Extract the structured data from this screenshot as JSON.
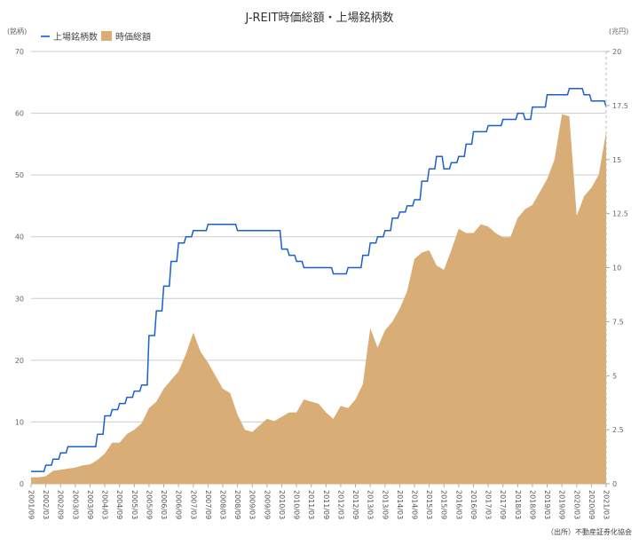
{
  "chart_data": {
    "type": "line+area",
    "title": "J-REIT時価総額・上場銘柄数",
    "left_unit": "(銘柄)",
    "right_unit": "(兆円)",
    "source": "（出所）不動産証券化協会",
    "left_ylim": [
      0,
      70
    ],
    "left_ticks": [
      "0",
      "10",
      "20",
      "30",
      "40",
      "50",
      "60",
      "70"
    ],
    "right_ylim": [
      0,
      20
    ],
    "right_ticks": [
      "0",
      "2.5",
      "5",
      "7.5",
      "10",
      "12.5",
      "15",
      "17.5",
      "20"
    ],
    "grid": true,
    "legend_position": "top-left",
    "colors": {
      "count_line": "#1a5fd1",
      "market_cap_area": "#d9ad76",
      "grid": "#cccccc"
    },
    "tick_labels": [
      "2001/09",
      "2002/03",
      "2002/09",
      "2003/03",
      "2003/09",
      "2004/03",
      "2004/09",
      "2005/03",
      "2005/09",
      "2006/03",
      "2006/09",
      "2007/03",
      "2007/09",
      "2008/03",
      "2008/09",
      "2009/03",
      "2009/09",
      "2010/03",
      "2010/09",
      "2011/03",
      "2011/09",
      "2012/03",
      "2012/09",
      "2013/03",
      "2013/09",
      "2014/03",
      "2014/09",
      "2015/03",
      "2015/09",
      "2016/03",
      "2016/09",
      "2017/03",
      "2017/09",
      "2018/03",
      "2018/09",
      "2019/03",
      "2019/09",
      "2020/03",
      "2020/09",
      "2021/03"
    ],
    "x": [
      "2001/09",
      "2001/12",
      "2002/03",
      "2002/06",
      "2002/09",
      "2002/12",
      "2003/03",
      "2003/06",
      "2003/09",
      "2003/12",
      "2004/03",
      "2004/06",
      "2004/09",
      "2004/12",
      "2005/03",
      "2005/06",
      "2005/09",
      "2005/12",
      "2006/03",
      "2006/06",
      "2006/09",
      "2006/12",
      "2007/03",
      "2007/06",
      "2007/09",
      "2007/12",
      "2008/03",
      "2008/06",
      "2008/09",
      "2008/12",
      "2009/03",
      "2009/06",
      "2009/09",
      "2009/12",
      "2010/03",
      "2010/06",
      "2010/09",
      "2010/12",
      "2011/03",
      "2011/06",
      "2011/09",
      "2011/12",
      "2012/03",
      "2012/06",
      "2012/09",
      "2012/12",
      "2013/03",
      "2013/06",
      "2013/09",
      "2013/12",
      "2014/03",
      "2014/06",
      "2014/09",
      "2014/12",
      "2015/03",
      "2015/06",
      "2015/09",
      "2015/12",
      "2016/03",
      "2016/06",
      "2016/09",
      "2016/12",
      "2017/03",
      "2017/06",
      "2017/09",
      "2017/12",
      "2018/03",
      "2018/06",
      "2018/09",
      "2018/12",
      "2019/03",
      "2019/06",
      "2019/09",
      "2019/12",
      "2020/03",
      "2020/06",
      "2020/09",
      "2020/12",
      "2021/03"
    ],
    "series": [
      {
        "name": "上場銘柄数",
        "type": "line",
        "axis": "left",
        "values": [
          2,
          2,
          3,
          4,
          5,
          6,
          6,
          6,
          6,
          8,
          11,
          12,
          13,
          14,
          15,
          16,
          24,
          28,
          32,
          36,
          39,
          40,
          41,
          41,
          42,
          42,
          42,
          42,
          41,
          41,
          41,
          41,
          41,
          41,
          38,
          37,
          36,
          35,
          35,
          35,
          35,
          34,
          34,
          35,
          35,
          37,
          39,
          40,
          41,
          43,
          44,
          45,
          46,
          49,
          51,
          53,
          51,
          52,
          53,
          55,
          57,
          57,
          58,
          58,
          59,
          59,
          60,
          59,
          61,
          61,
          63,
          63,
          63,
          64,
          64,
          63,
          62,
          62,
          61
        ]
      },
      {
        "name": "時価総額",
        "type": "area",
        "axis": "right",
        "values": [
          0.3,
          0.3,
          0.35,
          0.6,
          0.65,
          0.7,
          0.75,
          0.85,
          0.9,
          1.1,
          1.4,
          1.9,
          1.9,
          2.3,
          2.5,
          2.8,
          3.5,
          3.8,
          4.4,
          4.8,
          5.2,
          6.0,
          7.0,
          6.1,
          5.6,
          5.0,
          4.4,
          4.2,
          3.2,
          2.5,
          2.4,
          2.7,
          3.0,
          2.9,
          3.1,
          3.3,
          3.3,
          3.9,
          3.8,
          3.7,
          3.3,
          3.0,
          3.6,
          3.5,
          3.9,
          4.6,
          7.2,
          6.3,
          7.1,
          7.5,
          8.1,
          8.9,
          10.4,
          10.7,
          10.8,
          10.1,
          9.9,
          10.8,
          11.8,
          11.6,
          11.6,
          12.0,
          11.9,
          11.6,
          11.4,
          11.4,
          12.3,
          12.7,
          12.9,
          13.5,
          14.1,
          15.0,
          17.1,
          17.0,
          12.4,
          13.3,
          13.7,
          14.3,
          16.3
        ]
      }
    ]
  }
}
